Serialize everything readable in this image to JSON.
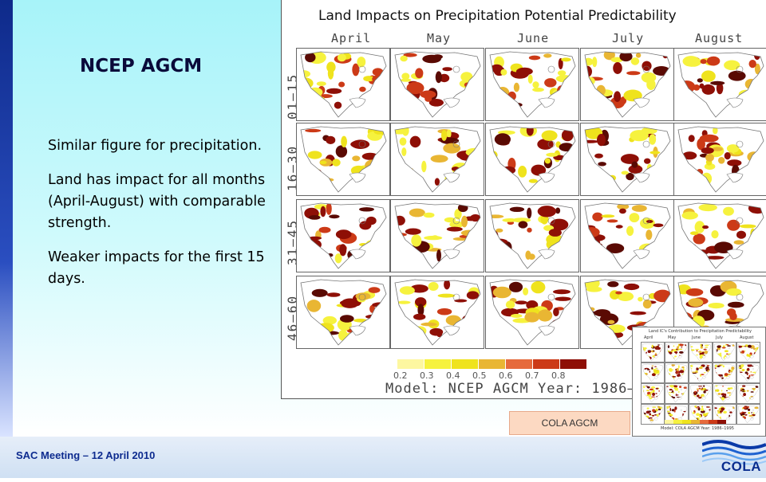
{
  "slide": {
    "title": "NCEP AGCM",
    "body": [
      "Similar figure for precipitation.",
      "Land has impact for all months (April-August) with comparable strength.",
      "Weaker impacts for the first 15 days."
    ],
    "footer": "SAC Meeting – 12 April 2010",
    "logo_text": "COLA"
  },
  "figure": {
    "title": "Land Impacts on Precipitation Potential Predictability",
    "months": [
      "April",
      "May",
      "June",
      "July",
      "August"
    ],
    "rows": [
      "01–15",
      "16–30",
      "31–45",
      "46–60"
    ],
    "colorbar_labels": [
      "0.2",
      "0.3",
      "0.4",
      "0.5",
      "0.6",
      "0.7",
      "0.8"
    ],
    "colorbar_colors": [
      "#fdf7a0",
      "#f6f23e",
      "#efe31d",
      "#e9b633",
      "#e66a3c",
      "#cc3a17",
      "#8e0f06"
    ],
    "model_text": "Model: NCEP AGCM   Year: 1986–"
  },
  "inset": {
    "title": "Land IC's Contribution to Precipitation Predictability",
    "months": [
      "April",
      "May",
      "June",
      "July",
      "August"
    ],
    "model_text": "Model: COLA AGCM   Year: 1986–1995"
  },
  "cola_label": "COLA AGCM"
}
